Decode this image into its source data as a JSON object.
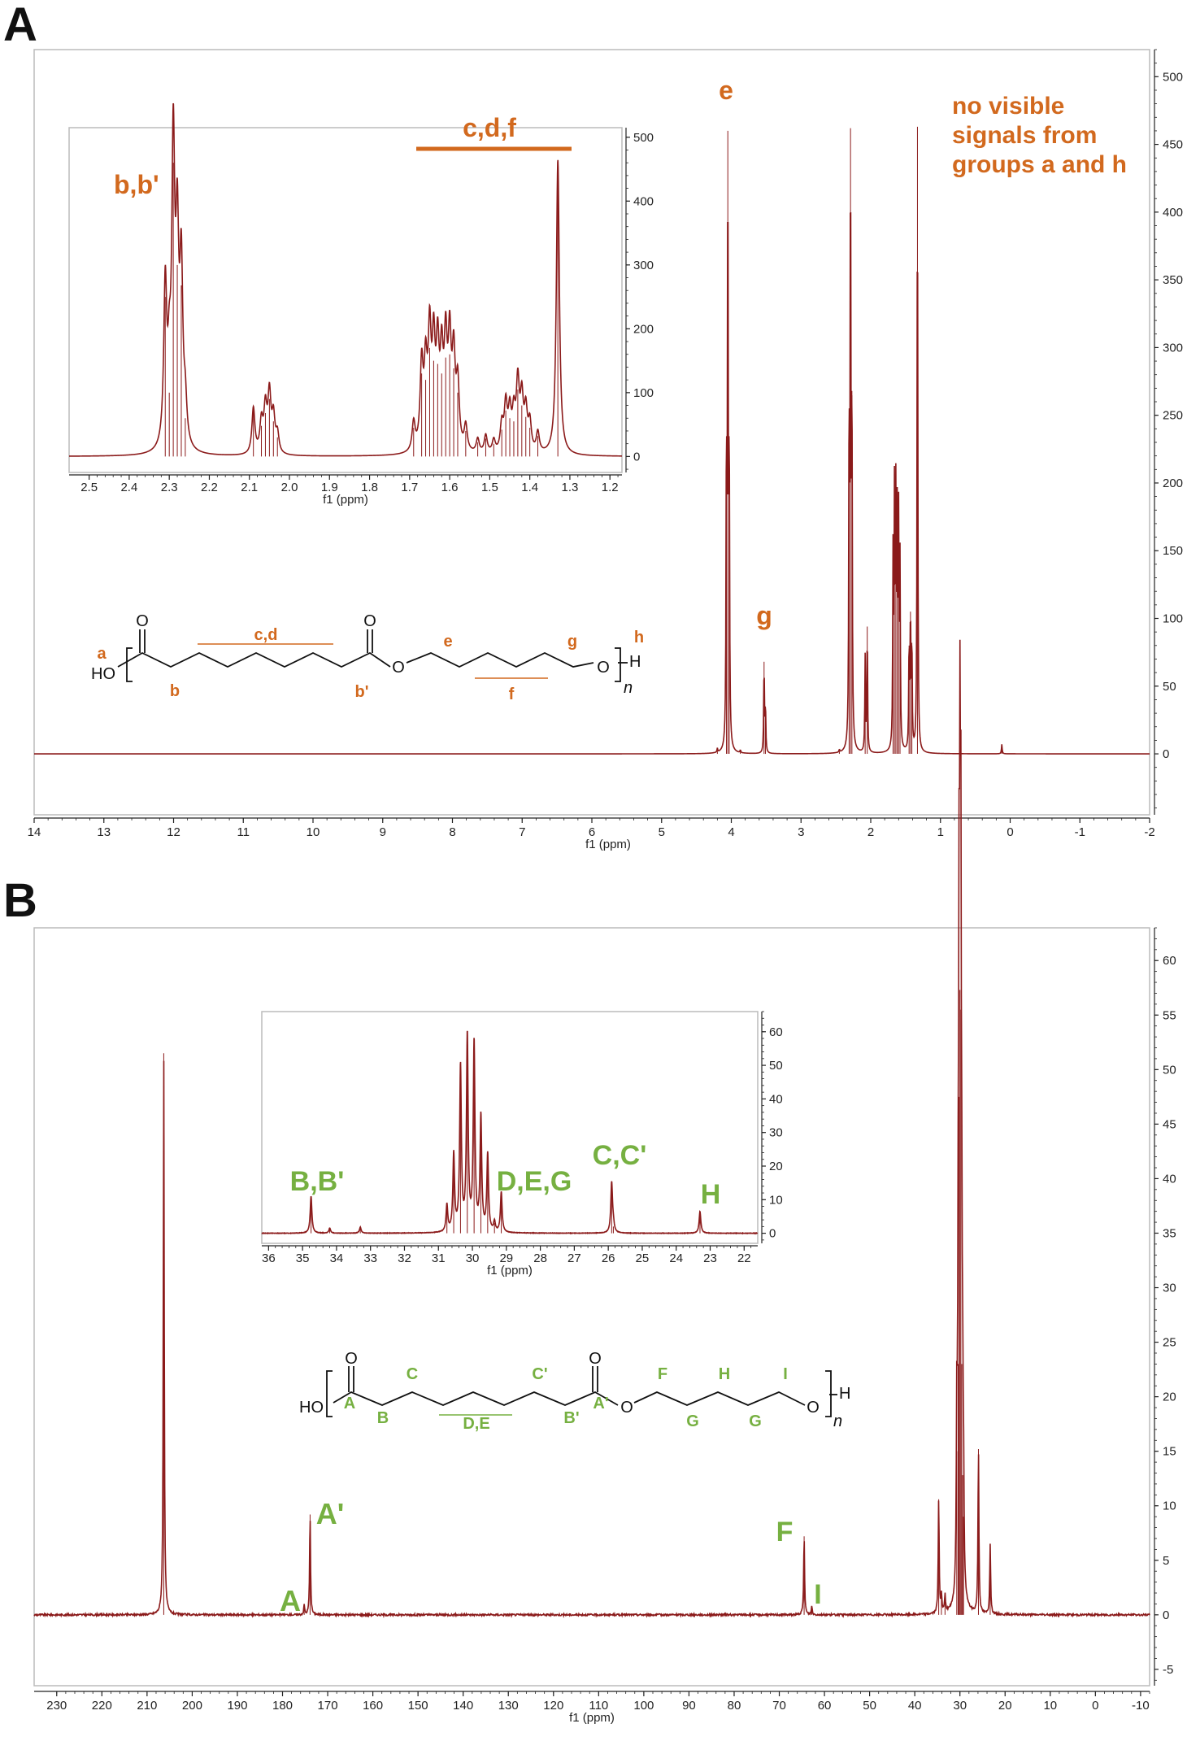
{
  "panels": {
    "a": {
      "letter": "A"
    },
    "b": {
      "letter": "B"
    }
  },
  "colors": {
    "spectrum": "#8b1a1a",
    "orange": "#d2691e",
    "green": "#76b041"
  },
  "annotations_a": {
    "e": "e",
    "g": "g",
    "note_line1": "no visible",
    "note_line2": "signals from",
    "note_line3": "groups a and h",
    "inset_bb": "b,b'",
    "inset_cdf": "c,d,f"
  },
  "annotations_b": {
    "A": "A",
    "Aprime": "A'",
    "F": "F",
    "I": "I",
    "inset_BB": "B,B'",
    "inset_DEG": "D,E,G",
    "inset_CC": "C,C'",
    "inset_H": "H"
  },
  "molecule_a": {
    "O1": "O",
    "O2": "O",
    "O3": "O",
    "O4": "O",
    "HO": "HO",
    "H": "H",
    "n": "n",
    "a": "a",
    "b": "b",
    "cd": "c,d",
    "bp": "b'",
    "e": "e",
    "f": "f",
    "g": "g",
    "h": "h"
  },
  "molecule_b": {
    "O1": "O",
    "O2": "O",
    "O3": "O",
    "O4": "O",
    "HO": "HO",
    "H": "H",
    "n": "n",
    "A": "A",
    "B": "B",
    "C": "C",
    "DE": "D,E",
    "Cp": "C'",
    "Bp": "B'",
    "Ap": "A'",
    "F": "F",
    "G1": "G",
    "G2": "G",
    "I": "I"
  },
  "chart_data": [
    {
      "type": "line",
      "name": "panel A main",
      "xlabel": "f1 (ppm)",
      "xlim": [
        14,
        -2
      ],
      "ylim": [
        -45,
        520
      ],
      "xticks": [
        14,
        13,
        12,
        11,
        10,
        9,
        8,
        7,
        6,
        5,
        4,
        3,
        2,
        1,
        0,
        -1,
        -2
      ],
      "xtick_labels": [
        "14",
        "13",
        "12",
        "11",
        "10",
        "9",
        "8",
        "7",
        "6",
        "5",
        "4",
        "3",
        "2",
        "1",
        "0",
        "-1",
        "-2"
      ],
      "yticks": [
        0,
        50,
        100,
        150,
        200,
        250,
        300,
        350,
        400,
        450,
        500
      ],
      "ytick_labels": [
        "0",
        "50",
        "100",
        "150",
        "200",
        "250",
        "300",
        "350",
        "400",
        "450",
        "500"
      ],
      "peaks": [
        {
          "x": 4.05,
          "y": 460
        },
        {
          "x": 4.07,
          "y": 230
        },
        {
          "x": 4.03,
          "y": 230
        },
        {
          "x": 3.53,
          "y": 68
        },
        {
          "x": 3.51,
          "y": 35
        },
        {
          "x": 2.31,
          "y": 255
        },
        {
          "x": 2.29,
          "y": 462
        },
        {
          "x": 2.27,
          "y": 268
        },
        {
          "x": 2.08,
          "y": 70
        },
        {
          "x": 2.05,
          "y": 94
        },
        {
          "x": 1.68,
          "y": 140
        },
        {
          "x": 1.66,
          "y": 180
        },
        {
          "x": 1.64,
          "y": 178
        },
        {
          "x": 1.62,
          "y": 160
        },
        {
          "x": 1.6,
          "y": 162
        },
        {
          "x": 1.58,
          "y": 135
        },
        {
          "x": 1.45,
          "y": 80
        },
        {
          "x": 1.43,
          "y": 105
        },
        {
          "x": 1.41,
          "y": 82
        },
        {
          "x": 1.33,
          "y": 463
        },
        {
          "x": 0.12,
          "y": 7
        },
        {
          "x": 4.2,
          "y": 3
        },
        {
          "x": 3.87,
          "y": 2
        },
        {
          "x": 2.45,
          "y": 2
        }
      ]
    },
    {
      "type": "line",
      "name": "panel A inset",
      "xlabel": "f1 (ppm)",
      "xlim": [
        2.55,
        1.17
      ],
      "ylim": [
        -25,
        515
      ],
      "xticks": [
        2.5,
        2.4,
        2.3,
        2.2,
        2.1,
        2.0,
        1.9,
        1.8,
        1.7,
        1.6,
        1.5,
        1.4,
        1.3,
        1.2
      ],
      "xtick_labels": [
        "2.5",
        "2.4",
        "2.3",
        "2.2",
        "2.1",
        "2.0",
        "1.9",
        "1.8",
        "1.7",
        "1.6",
        "1.5",
        "1.4",
        "1.3",
        "1.2"
      ],
      "yticks": [
        0,
        100,
        200,
        300,
        400,
        500
      ],
      "ytick_labels": [
        "0",
        "100",
        "200",
        "300",
        "400",
        "500"
      ],
      "peaks": [
        {
          "x": 2.31,
          "y": 250
        },
        {
          "x": 2.29,
          "y": 460
        },
        {
          "x": 2.28,
          "y": 300
        },
        {
          "x": 2.27,
          "y": 268
        },
        {
          "x": 2.3,
          "y": 100
        },
        {
          "x": 2.26,
          "y": 60
        },
        {
          "x": 2.09,
          "y": 72
        },
        {
          "x": 2.07,
          "y": 48
        },
        {
          "x": 2.06,
          "y": 68
        },
        {
          "x": 2.05,
          "y": 90
        },
        {
          "x": 2.04,
          "y": 55
        },
        {
          "x": 2.03,
          "y": 30
        },
        {
          "x": 1.69,
          "y": 45
        },
        {
          "x": 1.67,
          "y": 130
        },
        {
          "x": 1.66,
          "y": 120
        },
        {
          "x": 1.65,
          "y": 170
        },
        {
          "x": 1.64,
          "y": 150
        },
        {
          "x": 1.63,
          "y": 145
        },
        {
          "x": 1.62,
          "y": 130
        },
        {
          "x": 1.61,
          "y": 155
        },
        {
          "x": 1.6,
          "y": 160
        },
        {
          "x": 1.59,
          "y": 138
        },
        {
          "x": 1.58,
          "y": 100
        },
        {
          "x": 1.56,
          "y": 40
        },
        {
          "x": 1.53,
          "y": 22
        },
        {
          "x": 1.51,
          "y": 28
        },
        {
          "x": 1.49,
          "y": 20
        },
        {
          "x": 1.47,
          "y": 42
        },
        {
          "x": 1.46,
          "y": 72
        },
        {
          "x": 1.45,
          "y": 60
        },
        {
          "x": 1.44,
          "y": 55
        },
        {
          "x": 1.43,
          "y": 105
        },
        {
          "x": 1.42,
          "y": 80
        },
        {
          "x": 1.41,
          "y": 62
        },
        {
          "x": 1.4,
          "y": 45
        },
        {
          "x": 1.38,
          "y": 32
        },
        {
          "x": 1.33,
          "y": 463
        }
      ]
    },
    {
      "type": "line",
      "name": "panel B main",
      "xlabel": "f1 (ppm)",
      "xlim": [
        235,
        -12
      ],
      "ylim": [
        -6.5,
        63
      ],
      "xticks": [
        230,
        220,
        210,
        200,
        190,
        180,
        170,
        160,
        150,
        140,
        130,
        120,
        110,
        100,
        90,
        80,
        70,
        60,
        50,
        40,
        30,
        20,
        10,
        0,
        -10
      ],
      "xtick_labels": [
        "230",
        "220",
        "210",
        "200",
        "190",
        "180",
        "170",
        "160",
        "150",
        "140",
        "130",
        "120",
        "110",
        "100",
        "90",
        "80",
        "70",
        "60",
        "50",
        "40",
        "30",
        "20",
        "10",
        "0",
        "-10"
      ],
      "yticks": [
        -5,
        0,
        5,
        10,
        15,
        20,
        25,
        30,
        35,
        40,
        45,
        50,
        55,
        60
      ],
      "ytick_labels": [
        "-5",
        "0",
        "5",
        "10",
        "15",
        "20",
        "25",
        "30",
        "35",
        "40",
        "45",
        "50",
        "55",
        "60"
      ],
      "peaks": [
        {
          "x": 206.3,
          "y": 51.5
        },
        {
          "x": 175.2,
          "y": 0.9
        },
        {
          "x": 173.9,
          "y": 9.2
        },
        {
          "x": 64.5,
          "y": 7.2
        },
        {
          "x": 62.8,
          "y": 0.8
        },
        {
          "x": 34.7,
          "y": 10.6
        },
        {
          "x": 34.1,
          "y": 1.6
        },
        {
          "x": 33.3,
          "y": 1.6
        },
        {
          "x": 30.7,
          "y": 15.0
        },
        {
          "x": 30.4,
          "y": 23.0
        },
        {
          "x": 30.2,
          "y": 47.5
        },
        {
          "x": 30.0,
          "y": 57.3
        },
        {
          "x": 29.8,
          "y": 55.5
        },
        {
          "x": 29.6,
          "y": 23.0
        },
        {
          "x": 29.4,
          "y": 12.8
        },
        {
          "x": 29.2,
          "y": 9.0
        },
        {
          "x": 25.9,
          "y": 15.2
        },
        {
          "x": 23.3,
          "y": 6.5
        }
      ]
    },
    {
      "type": "line",
      "name": "panel B inset",
      "xlabel": "f1 (ppm)",
      "xlim": [
        36.2,
        21.6
      ],
      "ylim": [
        -3,
        66
      ],
      "xticks": [
        36,
        35,
        34,
        33,
        32,
        31,
        30,
        29,
        28,
        27,
        26,
        25,
        24,
        23,
        22
      ],
      "xtick_labels": [
        "36",
        "35",
        "34",
        "33",
        "32",
        "31",
        "30",
        "29",
        "28",
        "27",
        "26",
        "25",
        "24",
        "23",
        "22"
      ],
      "yticks": [
        0,
        10,
        20,
        30,
        40,
        50,
        60
      ],
      "ytick_labels": [
        "0",
        "10",
        "20",
        "30",
        "40",
        "50",
        "60"
      ],
      "peaks": [
        {
          "x": 34.75,
          "y": 11
        },
        {
          "x": 34.2,
          "y": 1.5
        },
        {
          "x": 33.3,
          "y": 1.8
        },
        {
          "x": 30.75,
          "y": 8
        },
        {
          "x": 30.55,
          "y": 23
        },
        {
          "x": 30.35,
          "y": 49
        },
        {
          "x": 30.15,
          "y": 58
        },
        {
          "x": 29.95,
          "y": 56
        },
        {
          "x": 29.75,
          "y": 34
        },
        {
          "x": 29.55,
          "y": 23
        },
        {
          "x": 29.35,
          "y": 3
        },
        {
          "x": 29.15,
          "y": 12
        },
        {
          "x": 25.9,
          "y": 15
        },
        {
          "x": 25.85,
          "y": 2
        },
        {
          "x": 23.3,
          "y": 6.5
        }
      ]
    }
  ]
}
